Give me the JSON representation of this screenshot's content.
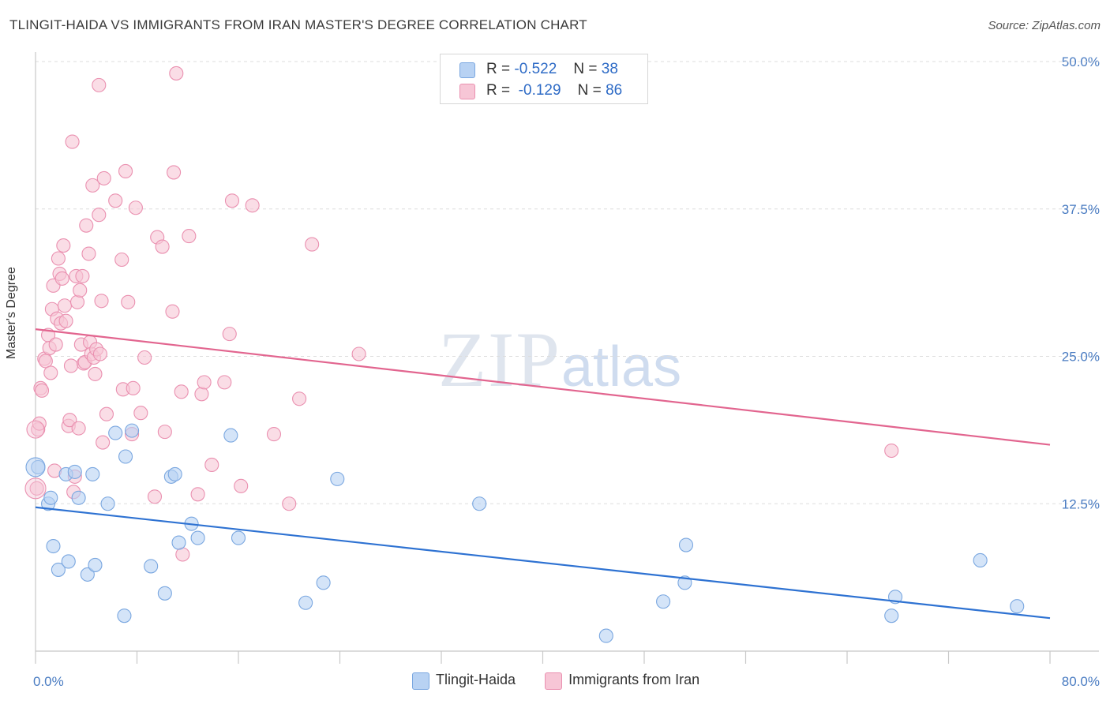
{
  "header": {
    "title": "TLINGIT-HAIDA VS IMMIGRANTS FROM IRAN MASTER'S DEGREE CORRELATION CHART",
    "source": "Source: ZipAtlas.com"
  },
  "watermark": {
    "zip": "ZIP",
    "atlas": "atlas"
  },
  "legend": {
    "rows": [
      {
        "r_label": "R =",
        "r_value": "-0.522",
        "n_label": "N =",
        "n_value": "38"
      },
      {
        "r_label": "R =",
        "r_value": "-0.129",
        "n_label": "N =",
        "n_value": "86"
      }
    ]
  },
  "bottom_legend": {
    "items": [
      "Tlingit-Haida",
      "Immigrants from Iran"
    ]
  },
  "colors": {
    "blue_fill": "#b8d2f3",
    "blue_stroke": "#7aa7e0",
    "blue_line": "#2e72d2",
    "pink_fill": "#f7c6d6",
    "pink_stroke": "#ea90b0",
    "pink_line": "#e2658f",
    "grid": "#dddddd",
    "tick_text": "#4a7cc2"
  },
  "chart_data": {
    "type": "scatter",
    "ylabel": "Master's Degree",
    "xlim": [
      0,
      80
    ],
    "ylim": [
      0,
      50
    ],
    "x_tick_labels": [
      "0.0%",
      "80.0%"
    ],
    "y_ticks": [
      12.5,
      25.0,
      37.5,
      50.0
    ],
    "y_tick_labels": [
      "12.5%",
      "25.0%",
      "37.5%",
      "50.0%"
    ],
    "grid": true,
    "series": [
      {
        "name": "Tlingit-Haida",
        "trend": [
          [
            0,
            12.2
          ],
          [
            80,
            2.8
          ]
        ],
        "points": [
          [
            0.2,
            15.6
          ],
          [
            1.0,
            12.5
          ],
          [
            1.2,
            13.0
          ],
          [
            1.4,
            8.9
          ],
          [
            1.8,
            6.9
          ],
          [
            2.4,
            15.0
          ],
          [
            2.6,
            7.6
          ],
          [
            3.1,
            15.2
          ],
          [
            3.4,
            13.0
          ],
          [
            4.1,
            6.5
          ],
          [
            4.5,
            15.0
          ],
          [
            4.7,
            7.3
          ],
          [
            5.7,
            12.5
          ],
          [
            6.3,
            18.5
          ],
          [
            7.0,
            3.0
          ],
          [
            7.1,
            16.5
          ],
          [
            7.6,
            18.7
          ],
          [
            9.1,
            7.2
          ],
          [
            10.2,
            4.9
          ],
          [
            10.7,
            14.8
          ],
          [
            11.0,
            15.0
          ],
          [
            11.3,
            9.2
          ],
          [
            12.3,
            10.8
          ],
          [
            12.8,
            9.6
          ],
          [
            15.4,
            18.3
          ],
          [
            16.0,
            9.6
          ],
          [
            21.3,
            4.1
          ],
          [
            22.7,
            5.8
          ],
          [
            23.8,
            14.6
          ],
          [
            35.0,
            12.5
          ],
          [
            45.0,
            1.3
          ],
          [
            49.5,
            4.2
          ],
          [
            51.2,
            5.8
          ],
          [
            51.3,
            9.0
          ],
          [
            67.5,
            3.0
          ],
          [
            67.8,
            4.6
          ],
          [
            74.5,
            7.7
          ],
          [
            77.4,
            3.8
          ]
        ]
      },
      {
        "name": "Immigrants from Iran",
        "trend": [
          [
            0,
            27.3
          ],
          [
            80,
            17.5
          ]
        ],
        "points": [
          [
            0.1,
            13.8
          ],
          [
            0.2,
            18.8
          ],
          [
            0.3,
            19.3
          ],
          [
            0.4,
            22.3
          ],
          [
            0.5,
            22.1
          ],
          [
            0.7,
            24.8
          ],
          [
            0.8,
            24.6
          ],
          [
            1.0,
            26.8
          ],
          [
            1.1,
            25.7
          ],
          [
            1.2,
            23.6
          ],
          [
            1.3,
            29.0
          ],
          [
            1.4,
            31.0
          ],
          [
            1.5,
            15.3
          ],
          [
            1.6,
            26.0
          ],
          [
            1.7,
            28.2
          ],
          [
            1.8,
            33.3
          ],
          [
            1.9,
            32.0
          ],
          [
            2.0,
            27.8
          ],
          [
            2.1,
            31.6
          ],
          [
            2.2,
            34.4
          ],
          [
            2.3,
            29.3
          ],
          [
            2.4,
            28.0
          ],
          [
            2.6,
            19.1
          ],
          [
            2.7,
            19.6
          ],
          [
            2.8,
            24.2
          ],
          [
            2.9,
            43.2
          ],
          [
            3.0,
            13.5
          ],
          [
            3.1,
            14.8
          ],
          [
            3.2,
            31.8
          ],
          [
            3.3,
            29.6
          ],
          [
            3.4,
            18.9
          ],
          [
            3.5,
            30.6
          ],
          [
            3.6,
            26.0
          ],
          [
            3.7,
            31.8
          ],
          [
            3.8,
            24.4
          ],
          [
            3.9,
            24.5
          ],
          [
            4.0,
            36.1
          ],
          [
            4.2,
            33.7
          ],
          [
            4.3,
            26.2
          ],
          [
            4.4,
            25.2
          ],
          [
            4.5,
            39.5
          ],
          [
            4.6,
            24.9
          ],
          [
            4.7,
            23.5
          ],
          [
            4.8,
            25.6
          ],
          [
            5.0,
            37.0
          ],
          [
            5.1,
            25.2
          ],
          [
            5.2,
            29.7
          ],
          [
            5.3,
            17.7
          ],
          [
            5.4,
            40.1
          ],
          [
            5.6,
            20.1
          ],
          [
            6.3,
            38.2
          ],
          [
            6.8,
            33.2
          ],
          [
            6.9,
            22.2
          ],
          [
            7.1,
            40.7
          ],
          [
            7.3,
            29.6
          ],
          [
            7.6,
            18.4
          ],
          [
            7.7,
            22.3
          ],
          [
            7.9,
            37.6
          ],
          [
            8.3,
            20.2
          ],
          [
            8.6,
            24.9
          ],
          [
            9.4,
            13.1
          ],
          [
            9.6,
            35.1
          ],
          [
            10.0,
            34.3
          ],
          [
            10.2,
            18.6
          ],
          [
            10.8,
            28.8
          ],
          [
            10.9,
            40.6
          ],
          [
            11.1,
            49.0
          ],
          [
            11.5,
            22.0
          ],
          [
            11.6,
            8.2
          ],
          [
            12.1,
            35.2
          ],
          [
            12.8,
            13.3
          ],
          [
            13.1,
            21.8
          ],
          [
            13.3,
            22.8
          ],
          [
            13.9,
            15.8
          ],
          [
            14.9,
            22.8
          ],
          [
            15.3,
            26.9
          ],
          [
            15.5,
            38.2
          ],
          [
            16.2,
            14.0
          ],
          [
            17.1,
            37.8
          ],
          [
            18.8,
            18.4
          ],
          [
            20.0,
            12.5
          ],
          [
            20.8,
            21.4
          ],
          [
            21.8,
            34.5
          ],
          [
            25.5,
            25.2
          ],
          [
            67.5,
            17.0
          ],
          [
            5.0,
            48.0
          ]
        ]
      }
    ]
  }
}
